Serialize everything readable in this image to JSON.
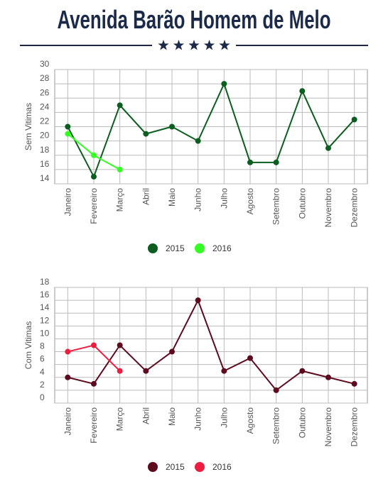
{
  "title": "Avenida Barão Homem de Melo",
  "chart_data": [
    {
      "type": "line",
      "y_label": "Sem Vitimas",
      "categories": [
        "Janeiro",
        "Fevereiro",
        "Março",
        "Abril",
        "Maio",
        "Junho",
        "Julho",
        "Agosto",
        "Setembro",
        "Outubro",
        "Novembro",
        "Dezembro"
      ],
      "series": [
        {
          "name": "2015",
          "color": "#0b5e1f",
          "values": [
            22,
            15,
            25,
            21,
            22,
            20,
            28,
            17,
            17,
            27,
            19,
            23
          ]
        },
        {
          "name": "2016",
          "color": "#33ff22",
          "values": [
            21,
            18,
            16,
            null,
            null,
            null,
            null,
            null,
            null,
            null,
            null,
            null
          ]
        }
      ],
      "ylim": [
        14,
        30
      ],
      "yticks": [
        14,
        16,
        18,
        20,
        22,
        24,
        26,
        28,
        30
      ],
      "grid": true
    },
    {
      "type": "line",
      "y_label": "Com Vitimas",
      "categories": [
        "Janeiro",
        "Fevereiro",
        "Março",
        "Abril",
        "Maio",
        "Junho",
        "Julho",
        "Agosto",
        "Setembro",
        "Outubro",
        "Novembro",
        "Dezembro"
      ],
      "series": [
        {
          "name": "2015",
          "color": "#5e0a1f",
          "values": [
            4,
            3,
            9,
            5,
            8,
            16,
            5,
            7,
            2,
            5,
            4,
            3
          ]
        },
        {
          "name": "2016",
          "color": "#ee1c3e",
          "values": [
            8,
            9,
            5,
            null,
            null,
            null,
            null,
            null,
            null,
            null,
            null,
            null
          ]
        }
      ],
      "ylim": [
        0,
        18
      ],
      "yticks": [
        0,
        2,
        4,
        6,
        8,
        10,
        12,
        14,
        16,
        18
      ],
      "grid": true
    }
  ]
}
